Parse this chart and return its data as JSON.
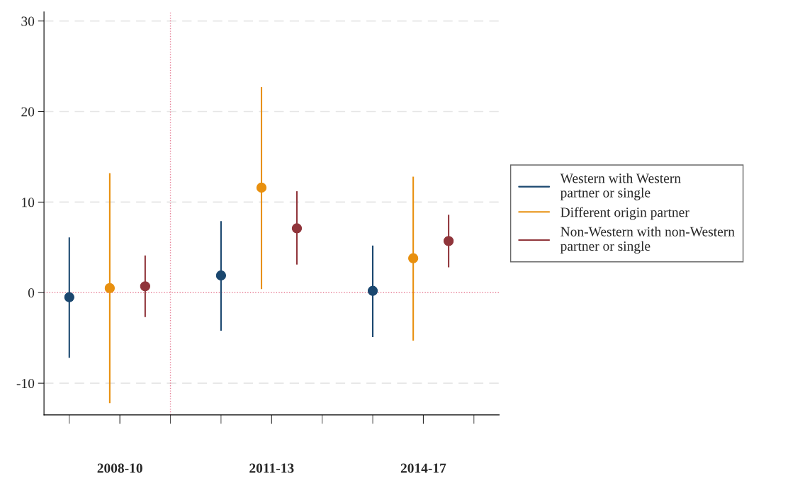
{
  "chart_data": {
    "type": "scatter",
    "marker": "circle",
    "grid": "y",
    "legend": "right",
    "categories": [
      "2008-10",
      "2011-13",
      "2014-17"
    ],
    "ylim": [
      -13.5,
      31
    ],
    "yticks": [
      {
        "value": -10,
        "label": "-10"
      },
      0,
      10,
      20,
      30
    ],
    "ref_lines": [
      {
        "axis": "y",
        "value": 0,
        "color": "#e8849a",
        "line_style": "dotted"
      },
      {
        "axis": "x",
        "value": "2008-10",
        "color": "#e8849a",
        "line_style": "dotted"
      }
    ],
    "series": [
      {
        "name": "Western with Western\npartner or single",
        "color": "#1a476f",
        "values": [
          -0.5,
          1.9,
          0.2
        ],
        "errors": [
          [
            -7.2,
            6.1
          ],
          [
            -4.2,
            7.9
          ],
          [
            -4.9,
            5.2
          ]
        ]
      },
      {
        "name": "Different origin partner",
        "color": "#e8900f",
        "values": [
          0.5,
          11.6,
          3.8
        ],
        "errors": [
          [
            -12.2,
            13.2
          ],
          [
            0.4,
            22.7
          ],
          [
            -5.3,
            12.8
          ]
        ]
      },
      {
        "name": "Non-Western with non-Western\npartner or single",
        "color": "#90353b",
        "values": [
          0.7,
          7.1,
          5.7
        ],
        "errors": [
          [
            -2.7,
            4.1
          ],
          [
            3.1,
            11.2
          ],
          [
            2.8,
            8.6
          ]
        ]
      }
    ]
  }
}
